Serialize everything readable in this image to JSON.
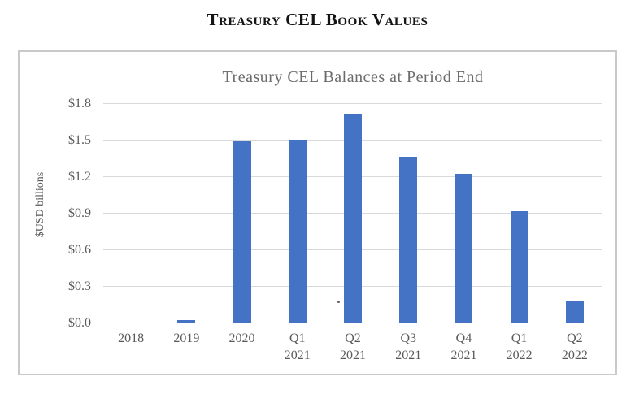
{
  "page": {
    "heading": "Treasury CEL Book Values"
  },
  "chart_data": {
    "type": "bar",
    "title": "Treasury CEL Balances at Period End",
    "xlabel": "",
    "ylabel": "$USD billions",
    "categories": [
      "2018",
      "2019",
      "2020",
      "Q1 2021",
      "Q2 2021",
      "Q3 2021",
      "Q4 2021",
      "Q1 2022",
      "Q2 2022"
    ],
    "values": [
      0.0,
      0.02,
      1.49,
      1.5,
      1.71,
      1.36,
      1.22,
      0.91,
      0.17
    ],
    "ylim": [
      0,
      1.8
    ],
    "ytick_step": 0.3,
    "ytick_labels": [
      "$0.0",
      "$0.3",
      "$0.6",
      "$0.9",
      "$1.2",
      "$1.5",
      "$1.8"
    ],
    "grid": true,
    "legend_position": "none",
    "bar_color": "#4472C4"
  },
  "colors": {
    "bar": "#4472C4",
    "heading_text": "#141414",
    "title_text": "#6B6B6B",
    "axis_text": "#595959",
    "gridline": "#D9D9D9",
    "chart_border": "#C9C9C9",
    "background": "#FFFFFF"
  }
}
